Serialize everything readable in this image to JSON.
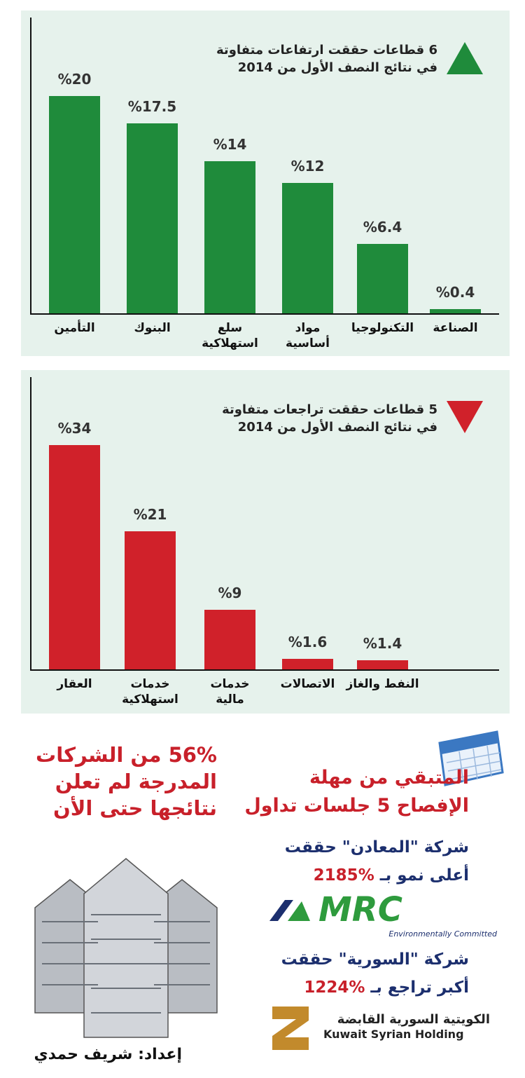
{
  "chart_data": [
    {
      "type": "bar",
      "title": "6 قطاعات حققت ارتفاعات متفاوتة\nفي نتائج النصف الأول من 2014",
      "color": "#1f8b3b",
      "categories": [
        "التأمين",
        "البنوك",
        "سلع\nاستهلاكية",
        "مواد\nأساسية",
        "التكنولوجيا",
        "الصناعة"
      ],
      "values": [
        20,
        17.5,
        14,
        12,
        6.4,
        0.4
      ],
      "value_labels": [
        "%20",
        "%17.5",
        "%14",
        "%12",
        "%6.4",
        "%0.4"
      ]
    },
    {
      "type": "bar",
      "title": "5 قطاعات حققت تراجعات متفاوتة\nفي نتائج النصف الأول من 2014",
      "color": "#d0212a",
      "categories": [
        "العقار",
        "خدمات\nاستهلاكية",
        "خدمات\nمالية",
        "الاتصالات",
        "النفط والغاز"
      ],
      "values": [
        34,
        21,
        9,
        1.6,
        1.4
      ],
      "value_labels": [
        "%34",
        "%21",
        "%9",
        "%1.6",
        "%1.4"
      ]
    }
  ],
  "notes": {
    "unreported": "56% من الشركات\nالمدرجة لم تعلن\nنتائجها حتى الأن",
    "deadline": "المتبقي من مهلة\nالإفصاح 5 جلسات تداول",
    "mrc_line1": "شركة \"المعادن\" حققت",
    "mrc_line2": "أعلى نمو بـ",
    "mrc_figure": "%2185",
    "mrc_logo": "MRC",
    "mrc_tagline": "Environmentally Committed",
    "ksh_line1": "شركة \"السورية\" حققت",
    "ksh_line2": "أكبر تراجع بـ",
    "ksh_figure": "%1224",
    "ksh_name_ar": "الكويتية السورية القابضة",
    "ksh_name_en": "Kuwait Syrian Holding",
    "credit": "إعداد: شريف حمدي"
  }
}
